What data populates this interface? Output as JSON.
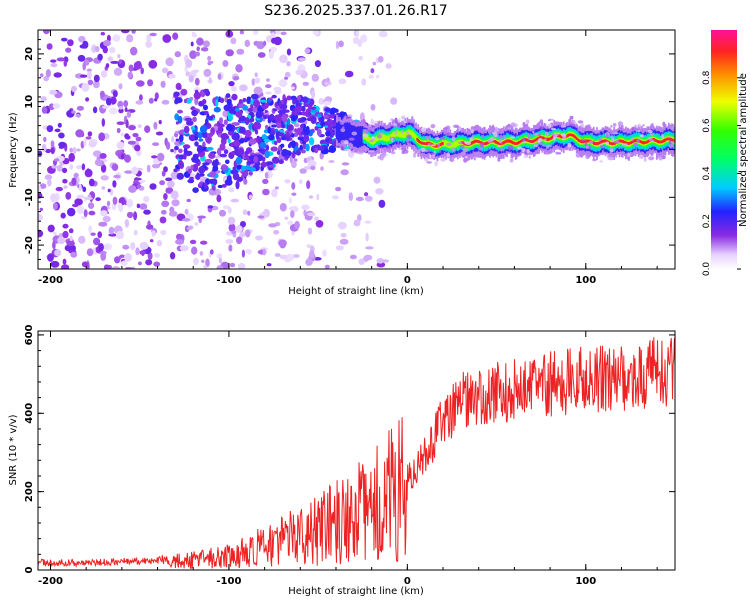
{
  "title": "S236.2025.337.01.26.R17",
  "chart_data": [
    {
      "type": "heatmap",
      "title": "S236.2025.337.01.26.R17",
      "xlabel": "Height of straight line (km)",
      "ylabel": "Frequency (Hz)",
      "xlim": [
        -207,
        150
      ],
      "ylim": [
        -25,
        25
      ],
      "xticks": [
        -200,
        -100,
        0,
        100
      ],
      "yticks": [
        -20,
        -10,
        0,
        10,
        20
      ],
      "ridge": {
        "description": "Carrier line; scattered noise below ~-20 km, coherent narrow line above",
        "points": [
          {
            "x": -120,
            "y": 2
          },
          {
            "x": -100,
            "y": 2
          },
          {
            "x": -60,
            "y": 5
          },
          {
            "x": -40,
            "y": 4
          },
          {
            "x": -20,
            "y": 2
          },
          {
            "x": 0,
            "y": 3.5
          },
          {
            "x": 10,
            "y": 1
          },
          {
            "x": 20,
            "y": 1
          },
          {
            "x": 40,
            "y": 1.5
          },
          {
            "x": 60,
            "y": 1.5
          },
          {
            "x": 80,
            "y": 2.5
          },
          {
            "x": 90,
            "y": 3
          },
          {
            "x": 100,
            "y": 1.5
          },
          {
            "x": 120,
            "y": 1.5
          },
          {
            "x": 150,
            "y": 2
          }
        ]
      },
      "colorbar": {
        "label": "Normalized spectral amplitude",
        "range": [
          0,
          1
        ],
        "ticks": [
          "0.0",
          "0.2",
          "0.4",
          "0.6",
          "0.8"
        ],
        "tick_values": [
          0,
          0.2,
          0.4,
          0.6,
          0.8
        ],
        "colormap": "white-purple-blue-cyan-green-yellow-red-magenta"
      }
    },
    {
      "type": "line",
      "xlabel": "Height of straight line (km)",
      "ylabel": "SNR (10 * v/v)",
      "xlim": [
        -207,
        150
      ],
      "ylim": [
        0,
        610
      ],
      "xticks": [
        -200,
        -100,
        0,
        100
      ],
      "yticks": [
        0,
        200,
        400,
        600
      ],
      "color": "#ee2222",
      "series": [
        {
          "name": "SNR",
          "x": [
            -207,
            -180,
            -160,
            -140,
            -120,
            -100,
            -80,
            -60,
            -40,
            -30,
            -20,
            -10,
            0,
            10,
            20,
            30,
            50,
            70,
            90,
            110,
            130,
            150
          ],
          "y": [
            15,
            15,
            18,
            20,
            25,
            35,
            60,
            90,
            120,
            140,
            160,
            190,
            230,
            300,
            380,
            430,
            450,
            470,
            480,
            490,
            500,
            510
          ]
        }
      ]
    }
  ]
}
